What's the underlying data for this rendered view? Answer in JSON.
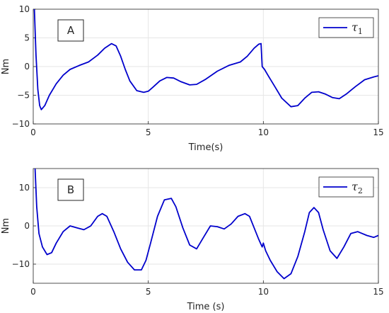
{
  "chart_data": [
    {
      "type": "line",
      "panel_label": "A",
      "xlabel": "Time(s)",
      "ylabel": "Nm",
      "xlim": [
        0,
        15
      ],
      "ylim": [
        -10,
        10
      ],
      "xticks": [
        "0",
        "5",
        "10",
        "15"
      ],
      "yticks": [
        "-10",
        "-5",
        "0",
        "5",
        "10"
      ],
      "grid": true,
      "legend_position": "top-right",
      "series": [
        {
          "name": "τ1",
          "legend_symbol": "τ",
          "legend_subscript": "1",
          "color": "#0000cc",
          "x": [
            0.05,
            0.12,
            0.2,
            0.28,
            0.35,
            0.5,
            0.7,
            1.0,
            1.3,
            1.6,
            2.0,
            2.4,
            2.8,
            3.1,
            3.4,
            3.6,
            3.8,
            4.0,
            4.2,
            4.5,
            4.8,
            5.0,
            5.2,
            5.5,
            5.8,
            6.1,
            6.4,
            6.8,
            7.1,
            7.5,
            8.0,
            8.5,
            9.0,
            9.3,
            9.6,
            9.8,
            9.9,
            9.95,
            10.05,
            10.2,
            10.5,
            10.8,
            11.2,
            11.5,
            11.8,
            12.1,
            12.4,
            12.7,
            13.0,
            13.3,
            13.6,
            14.0,
            14.4,
            14.8,
            15.0
          ],
          "y": [
            10,
            2,
            -4,
            -6.8,
            -7.5,
            -6.8,
            -5,
            -3,
            -1.5,
            -0.5,
            0.2,
            0.8,
            2,
            3.2,
            4,
            3.6,
            1.8,
            -0.5,
            -2.5,
            -4.2,
            -4.5,
            -4.3,
            -3.6,
            -2.5,
            -1.9,
            -2,
            -2.6,
            -3.2,
            -3.1,
            -2.2,
            -0.8,
            0.2,
            0.8,
            1.8,
            3.2,
            3.9,
            4,
            0,
            -0.5,
            -1.5,
            -3.5,
            -5.5,
            -7,
            -6.8,
            -5.5,
            -4.5,
            -4.4,
            -4.8,
            -5.4,
            -5.6,
            -4.8,
            -3.5,
            -2.3,
            -1.8,
            -1.6
          ]
        }
      ]
    },
    {
      "type": "line",
      "panel_label": "B",
      "xlabel": "Time (s)",
      "ylabel": "Nm",
      "xlim": [
        0,
        15
      ],
      "ylim": [
        -15,
        15
      ],
      "xticks": [
        "0",
        "5",
        "10",
        "15"
      ],
      "yticks": [
        "-10",
        "0",
        "10"
      ],
      "grid": true,
      "legend_position": "top-right",
      "series": [
        {
          "name": "τ2",
          "legend_symbol": "τ",
          "legend_subscript": "2",
          "color": "#0000cc",
          "x": [
            0.08,
            0.15,
            0.25,
            0.4,
            0.6,
            0.8,
            1.0,
            1.3,
            1.6,
            1.9,
            2.2,
            2.5,
            2.8,
            3.0,
            3.2,
            3.5,
            3.8,
            4.1,
            4.4,
            4.7,
            4.9,
            5.1,
            5.4,
            5.7,
            6.0,
            6.2,
            6.5,
            6.8,
            7.1,
            7.4,
            7.7,
            8.0,
            8.3,
            8.6,
            8.9,
            9.2,
            9.4,
            9.6,
            9.8,
            9.95,
            10.0,
            10.1,
            10.3,
            10.6,
            10.9,
            11.2,
            11.5,
            11.8,
            12.0,
            12.2,
            12.4,
            12.6,
            12.9,
            13.2,
            13.5,
            13.8,
            14.1,
            14.5,
            14.8,
            15.0
          ],
          "y": [
            15,
            5,
            -2,
            -5.5,
            -7.5,
            -7,
            -4.5,
            -1.5,
            0,
            -0.5,
            -1,
            0,
            2.5,
            3.2,
            2.5,
            -1.5,
            -6,
            -9.5,
            -11.5,
            -11.5,
            -9,
            -4.5,
            2.5,
            6.8,
            7.2,
            5,
            -0.5,
            -5,
            -6,
            -3,
            0,
            -0.2,
            -0.8,
            0.5,
            2.5,
            3.2,
            2.5,
            -0.5,
            -3.5,
            -5.5,
            -4.5,
            -6.5,
            -9,
            -12,
            -13.8,
            -12.5,
            -8,
            -1.5,
            3.5,
            4.8,
            3.5,
            -1,
            -6.5,
            -8.5,
            -5.5,
            -2,
            -1.5,
            -2.5,
            -3,
            -2.5
          ]
        }
      ]
    }
  ]
}
